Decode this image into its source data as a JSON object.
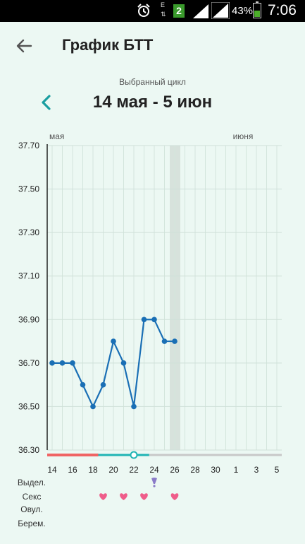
{
  "status_bar": {
    "network_type": "E",
    "sim_slot": "2",
    "battery_percent": "43%",
    "battery_level": 0.43,
    "time": "7:06",
    "icons": [
      "alarm-icon",
      "data-arrows-icon",
      "sim2-icon",
      "signal-icon",
      "signal-icon",
      "battery-icon"
    ]
  },
  "header": {
    "back_icon": "arrow-left-icon",
    "title": "График БТТ"
  },
  "cycle": {
    "caption": "Выбранный цикл",
    "prev_icon": "chevron-left-icon",
    "range": "14 мая - 5 июн"
  },
  "chart_data": {
    "type": "line",
    "month_labels": [
      "мая",
      "июня"
    ],
    "y_tick_labels": [
      "37.70",
      "37.50",
      "37.30",
      "37.10",
      "36.90",
      "36.70",
      "36.50",
      "36.30"
    ],
    "x_tick_labels": [
      "14",
      "16",
      "18",
      "20",
      "22",
      "24",
      "26",
      "28",
      "30",
      "1",
      "3",
      "5"
    ],
    "ylim": [
      36.3,
      37.7
    ],
    "day_count": 23,
    "series": [
      {
        "values": [
          36.7,
          36.7,
          36.7,
          36.6,
          36.5,
          36.6,
          36.8,
          36.7,
          36.5,
          36.9,
          36.9,
          36.8,
          36.8
        ],
        "color": "#1a6fb5"
      }
    ],
    "today_index": 12,
    "period_bar": {
      "red_days": 5,
      "marker_index": 8,
      "teal_until_index": 9.5,
      "colors": [
        "#f06464",
        "#20b4b4",
        "#c8c8c8"
      ]
    },
    "grid": true
  },
  "legend_rows": [
    {
      "label": "Выдел.",
      "marks": [
        {
          "index": 10,
          "icon": "drop-icon",
          "color": "#8a7bc8"
        }
      ]
    },
    {
      "label": "Секс",
      "marks": [
        {
          "index": 5,
          "icon": "heart-icon",
          "color": "#ef5d8a"
        },
        {
          "index": 7,
          "icon": "heart-icon",
          "color": "#ef5d8a"
        },
        {
          "index": 9,
          "icon": "heart-icon",
          "color": "#ef5d8a"
        },
        {
          "index": 12,
          "icon": "heart-icon",
          "color": "#ef5d8a"
        }
      ]
    },
    {
      "label": "Овул.",
      "marks": []
    },
    {
      "label": "Берем.",
      "marks": []
    }
  ],
  "colors": {
    "background": "#ecf8f3",
    "accent": "#1a9ea0",
    "line": "#1a6fb5"
  }
}
